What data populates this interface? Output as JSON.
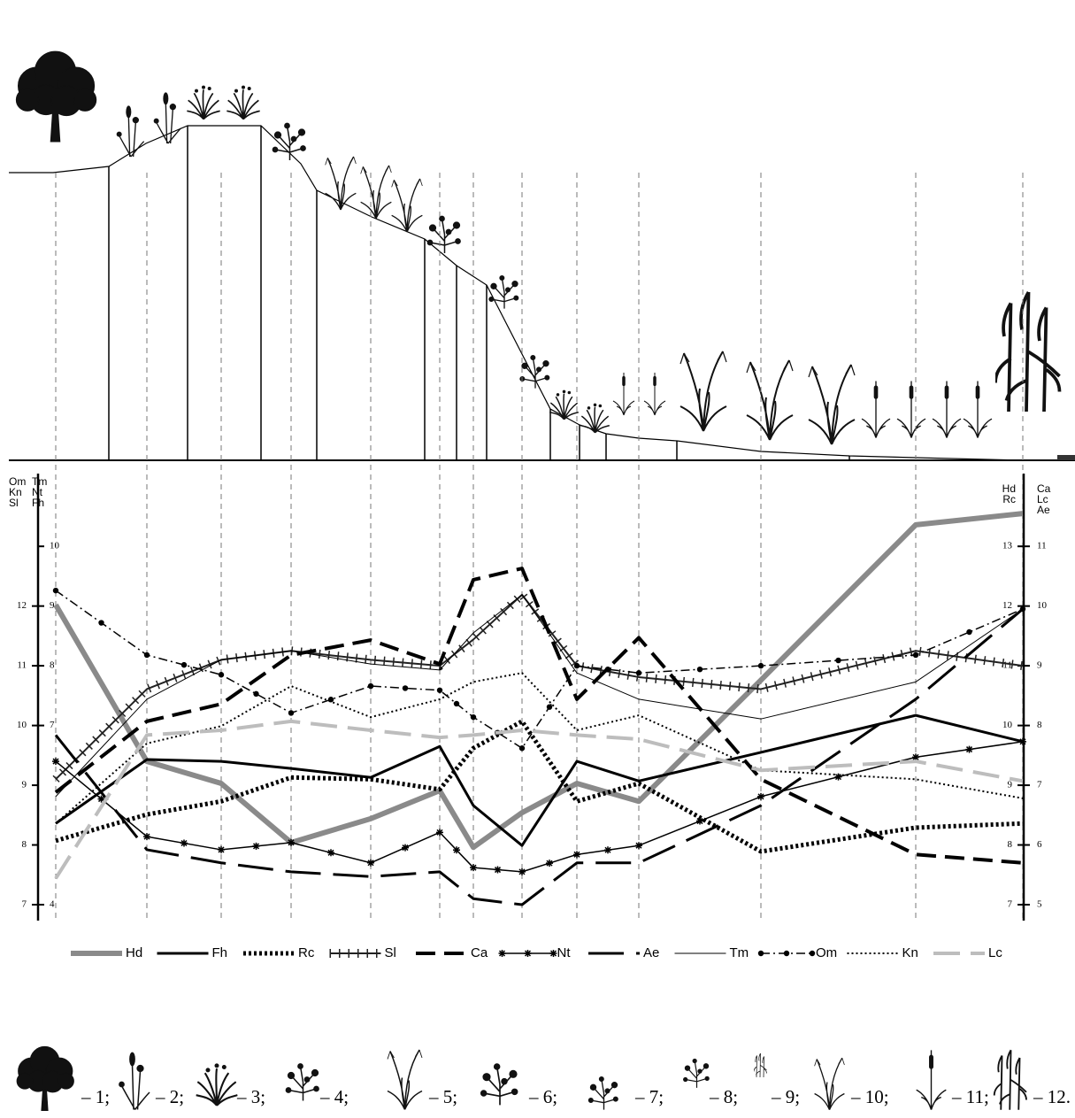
{
  "chart_data": {
    "type": "line",
    "categories": [
      null,
      null,
      null,
      null,
      null,
      null,
      null,
      null,
      null,
      null,
      null,
      null,
      null
    ],
    "axes": [
      {
        "labels": [
          "Om",
          "Kn",
          "Sl"
        ],
        "lim": [
          6.8,
          14.07
        ],
        "ticks": [
          7,
          8,
          9,
          10,
          11,
          12
        ]
      },
      {
        "labels": [
          "Tm",
          "Nt",
          "Fh"
        ],
        "lim": [
          3.8,
          11.07
        ],
        "ticks": [
          4,
          7,
          8,
          9,
          10
        ]
      },
      {
        "labels": [
          "Hd",
          "Rc"
        ],
        "lim": [
          6.8,
          14.07
        ],
        "ticks": [
          7,
          8,
          9,
          10,
          11,
          12,
          13
        ]
      },
      {
        "labels": [
          "Ca",
          "Lc",
          "Ae"
        ],
        "lim": [
          4.8,
          12.07
        ],
        "ticks": [
          5,
          6,
          7,
          8,
          9,
          10,
          11
        ]
      }
    ],
    "series": [
      {
        "name": "Hd",
        "axis": 2,
        "color": "#8a8a8a",
        "width": 6,
        "dash": "none",
        "marker": "none",
        "values": [
          12.02,
          9.4,
          9.03,
          8.04,
          8.44,
          8.91,
          7.96,
          8.54,
          9.03,
          8.73,
          10.76,
          13.36,
          13.55
        ]
      },
      {
        "name": "Fh",
        "axis": 1,
        "color": "#000000",
        "width": 3,
        "dash": "none",
        "marker": "none",
        "values": [
          5.36,
          6.43,
          6.4,
          6.28,
          6.13,
          6.65,
          5.66,
          4.99,
          6.4,
          6.07,
          6.55,
          7.17,
          6.73
        ]
      },
      {
        "name": "Rc",
        "axis": 2,
        "color": "#000000",
        "width": 5,
        "dash": "3 3",
        "marker": "none",
        "values": [
          8.07,
          8.51,
          8.73,
          9.13,
          9.1,
          8.93,
          9.62,
          10.07,
          8.73,
          9.03,
          7.89,
          8.29,
          8.36
        ]
      },
      {
        "name": "Sl",
        "axis": 0,
        "color": "#222222",
        "width": 2,
        "dash": "none",
        "marker": "tick",
        "values": [
          9.1,
          10.61,
          11.1,
          11.25,
          11.1,
          11.0,
          11.44,
          12.19,
          11.0,
          10.81,
          10.61,
          11.25,
          11.0
        ]
      },
      {
        "name": "Ca",
        "axis": 3,
        "color": "#000000",
        "width": 4,
        "dash": "22 10",
        "marker": "none",
        "values": [
          6.88,
          8.07,
          8.36,
          9.18,
          9.43,
          9.03,
          10.44,
          10.63,
          8.44,
          9.47,
          7.1,
          5.84,
          5.7
        ]
      },
      {
        "name": "Nt",
        "axis": 1,
        "color": "#000000",
        "width": 1.5,
        "dash": "none",
        "marker": "star",
        "values": [
          6.4,
          5.14,
          4.92,
          5.04,
          4.7,
          5.21,
          4.62,
          4.55,
          4.84,
          4.99,
          5.81,
          6.47,
          6.73
        ]
      },
      {
        "name": "Ae",
        "axis": 3,
        "color": "#000000",
        "width": 3,
        "dash": "40 14",
        "marker": "none",
        "values": [
          7.84,
          5.92,
          5.7,
          5.55,
          5.47,
          5.55,
          5.1,
          5.0,
          5.7,
          5.7,
          6.66,
          8.44,
          9.95
        ]
      },
      {
        "name": "Tm",
        "axis": 1,
        "color": "#000000",
        "width": 1,
        "dash": "none",
        "marker": "none",
        "values": [
          5.81,
          7.44,
          8.1,
          8.25,
          8.03,
          7.93,
          8.55,
          9.19,
          7.88,
          7.44,
          7.11,
          7.73,
          8.95
        ]
      },
      {
        "name": "Om",
        "axis": 0,
        "color": "#000000",
        "width": 1.5,
        "dash": "10 4 2 4",
        "marker": "dot",
        "values": [
          12.26,
          11.18,
          10.85,
          10.21,
          10.66,
          10.59,
          10.14,
          9.62,
          11.0,
          10.88,
          11.0,
          11.18,
          11.95
        ]
      },
      {
        "name": "Kn",
        "axis": 0,
        "color": "#000000",
        "width": 2,
        "dash": "2 3",
        "marker": "none",
        "values": [
          8.36,
          9.7,
          9.99,
          10.66,
          10.14,
          10.44,
          10.73,
          10.88,
          9.92,
          10.17,
          9.25,
          9.1,
          8.78
        ]
      },
      {
        "name": "Lc",
        "axis": 3,
        "color": "#bdbdbd",
        "width": 4,
        "dash": "30 12",
        "marker": "none",
        "values": [
          5.44,
          7.84,
          7.92,
          8.07,
          7.92,
          7.8,
          7.84,
          7.92,
          7.84,
          7.77,
          7.25,
          7.4,
          7.07
        ]
      }
    ]
  },
  "plant_key": [
    "– 1;",
    "– 2;",
    "– 3;",
    "– 4;",
    "– 5;",
    "– 6;",
    "– 7;",
    "– 8;",
    "– 9;",
    "– 10;",
    "– 11;",
    "– 12."
  ]
}
